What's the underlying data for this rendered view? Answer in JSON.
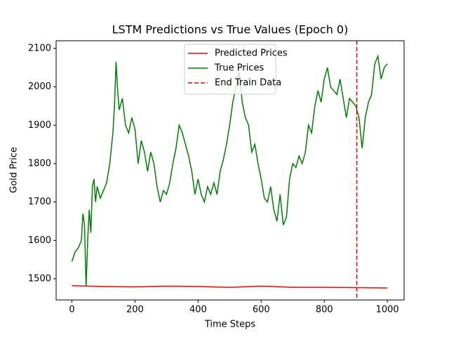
{
  "chart_data": {
    "type": "line",
    "title": "LSTM Predictions vs True Values (Epoch 0)",
    "x_label": "Time Steps",
    "y_label": "Gold Price",
    "xlim": [
      -50,
      1053
    ],
    "ylim": [
      1445,
      2120
    ],
    "xticks": [
      0,
      200,
      400,
      600,
      800,
      1000
    ],
    "yticks": [
      1500,
      1600,
      1700,
      1800,
      1900,
      2000,
      2100
    ],
    "grid": false,
    "legend": "upper center",
    "series": [
      {
        "name": "Predicted Prices",
        "color": "#ff0000",
        "x": [
          0,
          100,
          200,
          300,
          400,
          500,
          600,
          700,
          800,
          900,
          1000
        ],
        "values": [
          1482,
          1480,
          1479,
          1481,
          1480,
          1478,
          1481,
          1478,
          1478,
          1477,
          1476
        ]
      },
      {
        "name": "True Prices",
        "color": "#008000",
        "x": [
          0,
          10,
          20,
          30,
          35,
          40,
          45,
          50,
          55,
          60,
          65,
          70,
          75,
          80,
          90,
          100,
          110,
          120,
          130,
          135,
          140,
          145,
          150,
          160,
          170,
          180,
          190,
          200,
          210,
          220,
          230,
          240,
          250,
          260,
          270,
          280,
          290,
          300,
          310,
          320,
          330,
          340,
          350,
          360,
          370,
          380,
          390,
          400,
          410,
          420,
          430,
          440,
          450,
          460,
          470,
          480,
          490,
          500,
          510,
          520,
          530,
          540,
          550,
          560,
          570,
          580,
          590,
          600,
          610,
          620,
          630,
          640,
          650,
          660,
          670,
          680,
          690,
          700,
          710,
          720,
          730,
          740,
          750,
          760,
          770,
          780,
          790,
          800,
          810,
          820,
          830,
          840,
          850,
          860,
          870,
          880,
          890,
          900,
          910,
          920,
          930,
          940,
          950,
          960,
          970,
          980,
          990,
          1000
        ],
        "values": [
          1545,
          1570,
          1580,
          1600,
          1670,
          1640,
          1480,
          1600,
          1680,
          1620,
          1740,
          1760,
          1700,
          1740,
          1710,
          1730,
          1750,
          1800,
          1880,
          1950,
          2065,
          1990,
          1940,
          1970,
          1900,
          1880,
          1920,
          1890,
          1800,
          1860,
          1830,
          1780,
          1830,
          1800,
          1740,
          1700,
          1730,
          1720,
          1750,
          1800,
          1840,
          1900,
          1880,
          1850,
          1820,
          1780,
          1720,
          1760,
          1720,
          1700,
          1740,
          1720,
          1750,
          1720,
          1780,
          1810,
          1850,
          1900,
          1960,
          2000,
          2040,
          1960,
          1920,
          1900,
          1830,
          1850,
          1800,
          1760,
          1710,
          1700,
          1740,
          1680,
          1650,
          1720,
          1640,
          1660,
          1760,
          1800,
          1790,
          1820,
          1800,
          1830,
          1900,
          1880,
          1950,
          1990,
          1960,
          2020,
          2050,
          2000,
          1990,
          1980,
          2020,
          1970,
          1920,
          1970,
          1960,
          1950,
          1920,
          1840,
          1920,
          1960,
          1980,
          2060,
          2080,
          2020,
          2050,
          2060
        ]
      }
    ],
    "vlines": [
      {
        "name": "End Train Data",
        "x": 903,
        "color": "#ff0000"
      }
    ]
  }
}
